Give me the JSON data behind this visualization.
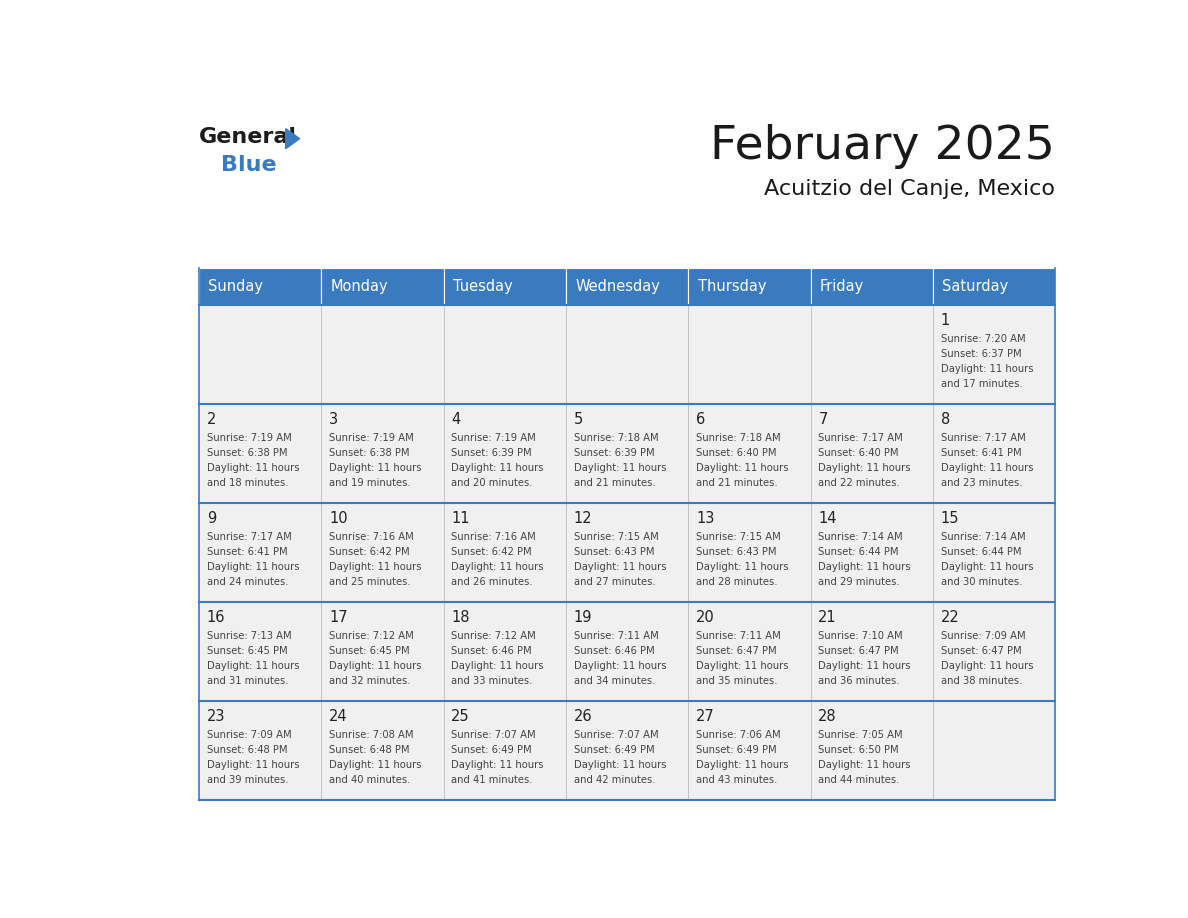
{
  "title": "February 2025",
  "subtitle": "Acuitzio del Canje, Mexico",
  "days_of_week": [
    "Sunday",
    "Monday",
    "Tuesday",
    "Wednesday",
    "Thursday",
    "Friday",
    "Saturday"
  ],
  "header_bg": "#3a7bbf",
  "header_text": "#ffffff",
  "cell_bg": "#f0f0f0",
  "line_color": "#3a7bbf",
  "title_color": "#1a1a1a",
  "subtitle_color": "#1a1a1a",
  "calendar": [
    [
      null,
      null,
      null,
      null,
      null,
      null,
      {
        "day": 1,
        "sunrise": "7:20 AM",
        "sunset": "6:37 PM",
        "daylight": "11 hours and 17 minutes."
      }
    ],
    [
      {
        "day": 2,
        "sunrise": "7:19 AM",
        "sunset": "6:38 PM",
        "daylight": "11 hours and 18 minutes."
      },
      {
        "day": 3,
        "sunrise": "7:19 AM",
        "sunset": "6:38 PM",
        "daylight": "11 hours and 19 minutes."
      },
      {
        "day": 4,
        "sunrise": "7:19 AM",
        "sunset": "6:39 PM",
        "daylight": "11 hours and 20 minutes."
      },
      {
        "day": 5,
        "sunrise": "7:18 AM",
        "sunset": "6:39 PM",
        "daylight": "11 hours and 21 minutes."
      },
      {
        "day": 6,
        "sunrise": "7:18 AM",
        "sunset": "6:40 PM",
        "daylight": "11 hours and 21 minutes."
      },
      {
        "day": 7,
        "sunrise": "7:17 AM",
        "sunset": "6:40 PM",
        "daylight": "11 hours and 22 minutes."
      },
      {
        "day": 8,
        "sunrise": "7:17 AM",
        "sunset": "6:41 PM",
        "daylight": "11 hours and 23 minutes."
      }
    ],
    [
      {
        "day": 9,
        "sunrise": "7:17 AM",
        "sunset": "6:41 PM",
        "daylight": "11 hours and 24 minutes."
      },
      {
        "day": 10,
        "sunrise": "7:16 AM",
        "sunset": "6:42 PM",
        "daylight": "11 hours and 25 minutes."
      },
      {
        "day": 11,
        "sunrise": "7:16 AM",
        "sunset": "6:42 PM",
        "daylight": "11 hours and 26 minutes."
      },
      {
        "day": 12,
        "sunrise": "7:15 AM",
        "sunset": "6:43 PM",
        "daylight": "11 hours and 27 minutes."
      },
      {
        "day": 13,
        "sunrise": "7:15 AM",
        "sunset": "6:43 PM",
        "daylight": "11 hours and 28 minutes."
      },
      {
        "day": 14,
        "sunrise": "7:14 AM",
        "sunset": "6:44 PM",
        "daylight": "11 hours and 29 minutes."
      },
      {
        "day": 15,
        "sunrise": "7:14 AM",
        "sunset": "6:44 PM",
        "daylight": "11 hours and 30 minutes."
      }
    ],
    [
      {
        "day": 16,
        "sunrise": "7:13 AM",
        "sunset": "6:45 PM",
        "daylight": "11 hours and 31 minutes."
      },
      {
        "day": 17,
        "sunrise": "7:12 AM",
        "sunset": "6:45 PM",
        "daylight": "11 hours and 32 minutes."
      },
      {
        "day": 18,
        "sunrise": "7:12 AM",
        "sunset": "6:46 PM",
        "daylight": "11 hours and 33 minutes."
      },
      {
        "day": 19,
        "sunrise": "7:11 AM",
        "sunset": "6:46 PM",
        "daylight": "11 hours and 34 minutes."
      },
      {
        "day": 20,
        "sunrise": "7:11 AM",
        "sunset": "6:47 PM",
        "daylight": "11 hours and 35 minutes."
      },
      {
        "day": 21,
        "sunrise": "7:10 AM",
        "sunset": "6:47 PM",
        "daylight": "11 hours and 36 minutes."
      },
      {
        "day": 22,
        "sunrise": "7:09 AM",
        "sunset": "6:47 PM",
        "daylight": "11 hours and 38 minutes."
      }
    ],
    [
      {
        "day": 23,
        "sunrise": "7:09 AM",
        "sunset": "6:48 PM",
        "daylight": "11 hours and 39 minutes."
      },
      {
        "day": 24,
        "sunrise": "7:08 AM",
        "sunset": "6:48 PM",
        "daylight": "11 hours and 40 minutes."
      },
      {
        "day": 25,
        "sunrise": "7:07 AM",
        "sunset": "6:49 PM",
        "daylight": "11 hours and 41 minutes."
      },
      {
        "day": 26,
        "sunrise": "7:07 AM",
        "sunset": "6:49 PM",
        "daylight": "11 hours and 42 minutes."
      },
      {
        "day": 27,
        "sunrise": "7:06 AM",
        "sunset": "6:49 PM",
        "daylight": "11 hours and 43 minutes."
      },
      {
        "day": 28,
        "sunrise": "7:05 AM",
        "sunset": "6:50 PM",
        "daylight": "11 hours and 44 minutes."
      },
      null
    ]
  ]
}
